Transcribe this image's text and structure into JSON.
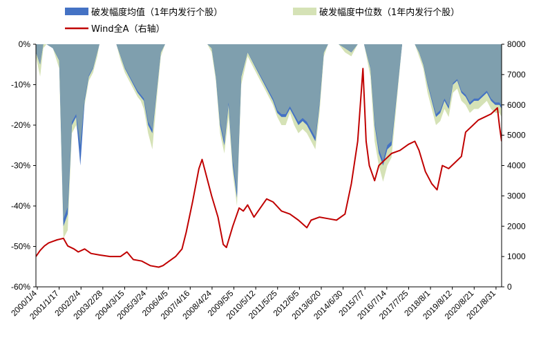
{
  "chart_data": {
    "type": "area",
    "title": "",
    "xlabel": "",
    "ylabel_left": "",
    "ylabel_right": "",
    "legend_position": "top-center",
    "grid": false,
    "y_left": {
      "min": -60,
      "max": 0,
      "ticks": [
        "0%",
        "-10%",
        "-20%",
        "-30%",
        "-40%",
        "-50%",
        "-60%"
      ]
    },
    "y_right": {
      "min": 0,
      "max": 8000,
      "ticks": [
        "8000",
        "7000",
        "6000",
        "5000",
        "4000",
        "3000",
        "2000",
        "1000",
        "0"
      ]
    },
    "x_ticks": [
      "2000/1/4",
      "2001/1/17",
      "2002/2/4",
      "2003/2/28",
      "2004/3/15",
      "2005/3/24",
      "2006/4/5",
      "2007/4/16",
      "2008/4/24",
      "2009/5/5",
      "2010/5/12",
      "2011/5/25",
      "2012/6/5",
      "2013/6/20",
      "2014/6/30",
      "2015/7/7",
      "2016/7/14",
      "2017/7/25",
      "2018/8/1",
      "2019/8/12",
      "2020/8/21",
      "2021/8/31"
    ],
    "colors": {
      "mean": "#4472c4",
      "median": "#d5e2b6",
      "overlap": "#7f9fae",
      "wind": "#c00000"
    },
    "series": [
      {
        "name": "破发幅度均值（1年内发行个股）",
        "axis": "left",
        "x": [
          2000.0,
          2000.2,
          2000.35,
          2000.5,
          2000.8,
          2001.1,
          2001.3,
          2001.5,
          2001.7,
          2001.9,
          2002.1,
          2002.3,
          2002.5,
          2002.7,
          2002.9,
          2003.0,
          2003.2,
          2003.5,
          2003.8,
          2004.0,
          2004.2,
          2004.4,
          2004.6,
          2004.8,
          2004.95,
          2005.1,
          2005.3,
          2005.5,
          2005.7,
          2005.9,
          2006.1,
          2006.3,
          2006.5,
          2006.8,
          2007.0,
          2007.3,
          2007.6,
          2007.9,
          2008.1,
          2008.3,
          2008.5,
          2008.7,
          2008.9,
          2009.1,
          2009.3,
          2009.5,
          2009.7,
          2010.0,
          2010.2,
          2010.4,
          2010.6,
          2010.8,
          2011.0,
          2011.2,
          2011.4,
          2011.6,
          2011.8,
          2012.0,
          2012.2,
          2012.4,
          2012.6,
          2012.8,
          2013.0,
          2013.2,
          2013.4,
          2013.6,
          2013.8,
          2014.0,
          2014.3,
          2014.6,
          2014.9,
          2015.2,
          2015.5,
          2015.8,
          2016.0,
          2016.2,
          2016.4,
          2016.6,
          2016.8,
          2017.0,
          2017.3,
          2017.6,
          2017.9,
          2018.1,
          2018.3,
          2018.5,
          2018.7,
          2018.9,
          2019.1,
          2019.3,
          2019.5,
          2019.7,
          2019.9,
          2020.1,
          2020.3,
          2020.5,
          2020.7,
          2020.9,
          2021.1,
          2021.3,
          2021.5,
          2021.7,
          2021.9,
          2022.0
        ],
        "values": [
          -2,
          -5,
          0,
          0,
          -1,
          -4,
          -45,
          -42,
          -20,
          -18,
          -30,
          -14,
          -8,
          -6,
          -2,
          0,
          0,
          0,
          0,
          -3,
          -6,
          -8,
          -10,
          -12,
          -13,
          -14,
          -20,
          -22,
          -12,
          -2,
          0,
          0,
          0,
          0,
          0,
          0,
          0,
          0,
          0,
          -1,
          -8,
          -20,
          -25,
          -15,
          -30,
          -38,
          -8,
          -2,
          -4,
          -6,
          -8,
          -10,
          -12,
          -14,
          -17,
          -18,
          -18,
          -16,
          -18,
          -20,
          -19,
          -20,
          -22,
          -24,
          -15,
          -2,
          0,
          0,
          0,
          -1,
          -2,
          0,
          0,
          -6,
          -20,
          -27,
          -30,
          -26,
          -25,
          -15,
          0,
          0,
          0,
          -2,
          -5,
          -10,
          -14,
          -18,
          -17,
          -14,
          -16,
          -10,
          -9,
          -12,
          -13,
          -15,
          -14,
          -14,
          -13,
          -12,
          -14,
          -15,
          -15,
          -16
        ]
      },
      {
        "name": "破发幅度中位数（1年内发行个股）",
        "axis": "left",
        "x": [
          2000.0,
          2000.2,
          2000.35,
          2000.5,
          2000.8,
          2001.1,
          2001.3,
          2001.5,
          2001.7,
          2001.9,
          2002.1,
          2002.3,
          2002.5,
          2002.7,
          2002.9,
          2003.0,
          2003.2,
          2003.5,
          2003.8,
          2004.0,
          2004.2,
          2004.4,
          2004.6,
          2004.8,
          2004.95,
          2005.1,
          2005.3,
          2005.5,
          2005.7,
          2005.9,
          2006.1,
          2006.3,
          2006.5,
          2006.8,
          2007.0,
          2007.3,
          2007.6,
          2007.9,
          2008.1,
          2008.3,
          2008.5,
          2008.7,
          2008.9,
          2009.1,
          2009.3,
          2009.5,
          2009.7,
          2010.0,
          2010.2,
          2010.4,
          2010.6,
          2010.8,
          2011.0,
          2011.2,
          2011.4,
          2011.6,
          2011.8,
          2012.0,
          2012.2,
          2012.4,
          2012.6,
          2012.8,
          2013.0,
          2013.2,
          2013.4,
          2013.6,
          2013.8,
          2014.0,
          2014.3,
          2014.6,
          2014.9,
          2015.2,
          2015.5,
          2015.8,
          2016.0,
          2016.2,
          2016.4,
          2016.6,
          2016.8,
          2017.0,
          2017.3,
          2017.6,
          2017.9,
          2018.1,
          2018.3,
          2018.5,
          2018.7,
          2018.9,
          2019.1,
          2019.3,
          2019.5,
          2019.7,
          2019.9,
          2020.1,
          2020.3,
          2020.5,
          2020.7,
          2020.9,
          2021.1,
          2021.3,
          2021.5,
          2021.7,
          2021.9,
          2022.0
        ],
        "values": [
          -3,
          -8,
          -1,
          0,
          -1,
          -6,
          -48,
          -46,
          -22,
          -20,
          -26,
          -15,
          -9,
          -7,
          -3,
          0,
          0,
          0,
          0,
          -4,
          -7,
          -9,
          -11,
          -13,
          -14,
          -16,
          -22,
          -26,
          -14,
          -3,
          0,
          0,
          0,
          0,
          0,
          0,
          0,
          0,
          0,
          -2,
          -9,
          -22,
          -27,
          -18,
          -32,
          -40,
          -10,
          -3,
          -5,
          -7,
          -9,
          -11,
          -13,
          -15,
          -18,
          -20,
          -20,
          -17,
          -20,
          -22,
          -21,
          -22,
          -24,
          -26,
          -17,
          -3,
          0,
          0,
          0,
          -2,
          -3,
          0,
          0,
          -8,
          -24,
          -30,
          -34,
          -30,
          -28,
          -17,
          0,
          0,
          0,
          -3,
          -6,
          -12,
          -16,
          -20,
          -19,
          -16,
          -18,
          -12,
          -11,
          -14,
          -15,
          -17,
          -16,
          -16,
          -15,
          -14,
          -16,
          -17,
          -17,
          -18
        ]
      },
      {
        "name": "Wind全A（右轴）",
        "axis": "right",
        "x": [
          2000.0,
          2000.2,
          2000.4,
          2000.6,
          2000.8,
          2001.0,
          2001.3,
          2001.5,
          2001.8,
          2002.0,
          2002.3,
          2002.6,
          2003.0,
          2003.5,
          2004.0,
          2004.3,
          2004.6,
          2005.0,
          2005.4,
          2005.8,
          2006.0,
          2006.3,
          2006.6,
          2006.9,
          2007.1,
          2007.4,
          2007.7,
          2007.85,
          2008.0,
          2008.3,
          2008.6,
          2008.85,
          2009.0,
          2009.3,
          2009.6,
          2009.8,
          2010.0,
          2010.3,
          2010.6,
          2010.9,
          2011.2,
          2011.6,
          2012.0,
          2012.4,
          2012.8,
          2013.0,
          2013.4,
          2013.8,
          2014.2,
          2014.6,
          2014.9,
          2015.2,
          2015.45,
          2015.6,
          2015.75,
          2016.0,
          2016.2,
          2016.5,
          2016.8,
          2017.2,
          2017.6,
          2017.9,
          2018.1,
          2018.4,
          2018.7,
          2018.95,
          2019.2,
          2019.5,
          2019.8,
          2020.1,
          2020.3,
          2020.6,
          2020.9,
          2021.2,
          2021.5,
          2021.8,
          2021.9,
          2022.0
        ],
        "values": [
          1000,
          1200,
          1350,
          1450,
          1500,
          1550,
          1600,
          1350,
          1250,
          1150,
          1250,
          1100,
          1050,
          1000,
          1000,
          1150,
          900,
          850,
          700,
          650,
          700,
          850,
          1000,
          1250,
          1800,
          2800,
          3900,
          4200,
          3800,
          3000,
          2300,
          1400,
          1300,
          2000,
          2600,
          2500,
          2700,
          2300,
          2600,
          2900,
          2800,
          2500,
          2400,
          2200,
          1950,
          2200,
          2300,
          2250,
          2200,
          2400,
          3400,
          4800,
          7200,
          4800,
          4000,
          3500,
          4000,
          4200,
          4400,
          4500,
          4700,
          4800,
          4500,
          3800,
          3400,
          3200,
          4000,
          3900,
          4100,
          4300,
          5100,
          5300,
          5500,
          5600,
          5700,
          5900,
          5300,
          4800
        ]
      }
    ]
  }
}
